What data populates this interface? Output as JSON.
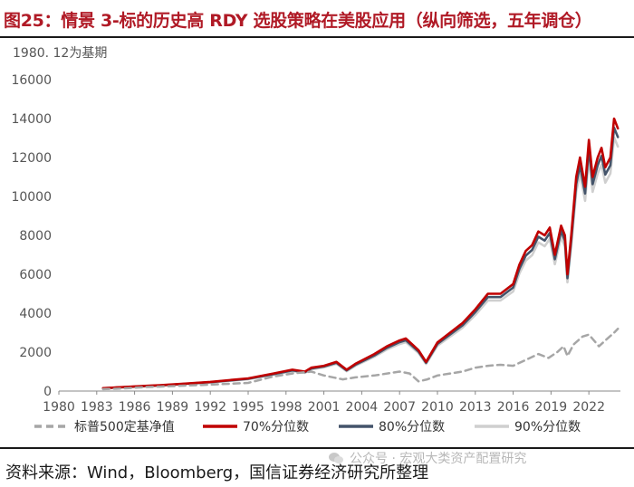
{
  "figure": {
    "title": "图25：情景 3-标的历史高 RDY 选股策略在美股应用（纵向筛选，五年调仓）",
    "base_note": "1980. 12为基期",
    "source": "资料来源：Wind，Bloomberg，国信证券经济研究所整理",
    "watermark": "公众号 · 宏观大类资产配置研究",
    "watermark_icon": "wechat-icon"
  },
  "chart_data": {
    "type": "line",
    "title": "情景 3-标的历史高 RDY 选股策略在美股应用（纵向筛选，五年调仓）",
    "xlabel": "",
    "ylabel": "1980. 12为基期",
    "xlim": [
      1980,
      2024.5
    ],
    "ylim": [
      0,
      16000
    ],
    "x_ticks": [
      "1980",
      "1983",
      "1986",
      "1989",
      "1992",
      "1995",
      "1998",
      "2001",
      "2004",
      "2007",
      "2010",
      "2013",
      "2016",
      "2019",
      "2022"
    ],
    "y_ticks": [
      "0",
      "2000",
      "4000",
      "6000",
      "8000",
      "10000",
      "12000",
      "14000",
      "16000"
    ],
    "legend_position": "bottom",
    "series": [
      {
        "name": "标普500定基净值",
        "color": "#a6a6a6",
        "dash": true,
        "x": [
          1983.5,
          1985,
          1987,
          1988,
          1990,
          1992,
          1995,
          1997,
          1998.5,
          2000,
          2001,
          2002.5,
          2003.5,
          2005,
          2007,
          2007.8,
          2008.5,
          2009.2,
          2010,
          2011,
          2012,
          2013,
          2014,
          2015,
          2016,
          2017,
          2018,
          2018.8,
          2019.5,
          2020,
          2020.3,
          2020.8,
          2021.5,
          2022,
          2022.8,
          2023.3,
          2024,
          2024.3
        ],
        "y": [
          100,
          130,
          210,
          230,
          280,
          330,
          420,
          750,
          900,
          1000,
          800,
          600,
          700,
          800,
          1000,
          900,
          500,
          600,
          800,
          900,
          1000,
          1200,
          1300,
          1350,
          1300,
          1600,
          1900,
          1700,
          2000,
          2300,
          1800,
          2400,
          2800,
          2900,
          2300,
          2600,
          3000,
          3200
        ]
      },
      {
        "name": "70%分位数",
        "color": "#c00000",
        "dash": false,
        "x": [
          1983.5,
          1985,
          1987,
          1988,
          1990,
          1992,
          1995,
          1997,
          1998.5,
          1999.5,
          2000,
          2001,
          2002,
          2002.8,
          2003.5,
          2005,
          2006,
          2007,
          2007.5,
          2008.5,
          2009.1,
          2010,
          2011,
          2012,
          2013,
          2014,
          2015,
          2016,
          2016.5,
          2017,
          2017.5,
          2018,
          2018.5,
          2018.9,
          2019.3,
          2019.8,
          2020.1,
          2020.3,
          2020.6,
          2021,
          2021.3,
          2021.7,
          2022,
          2022.3,
          2022.7,
          2023,
          2023.3,
          2023.7,
          2024,
          2024.3
        ],
        "y": [
          150,
          200,
          270,
          300,
          380,
          470,
          650,
          900,
          1100,
          1000,
          1200,
          1300,
          1500,
          1100,
          1400,
          1900,
          2300,
          2600,
          2700,
          2100,
          1500,
          2500,
          3000,
          3500,
          4200,
          5000,
          5000,
          5500,
          6500,
          7200,
          7500,
          8200,
          8000,
          8400,
          7000,
          8500,
          8000,
          6000,
          8000,
          11000,
          12000,
          10500,
          12900,
          11000,
          12000,
          12500,
          11500,
          12000,
          14000,
          13500
        ]
      },
      {
        "name": "80%分位数",
        "color": "#44546a",
        "dash": false,
        "x": [
          1983.5,
          1985,
          1987,
          1988,
          1990,
          1992,
          1995,
          1997,
          1998.5,
          1999.5,
          2000,
          2001,
          2002,
          2002.8,
          2003.5,
          2005,
          2006,
          2007,
          2007.5,
          2008.5,
          2009.1,
          2010,
          2011,
          2012,
          2013,
          2014,
          2015,
          2016,
          2016.5,
          2017,
          2017.5,
          2018,
          2018.5,
          2018.9,
          2019.3,
          2019.8,
          2020.1,
          2020.3,
          2020.6,
          2021,
          2021.3,
          2021.7,
          2022,
          2022.3,
          2022.7,
          2023,
          2023.3,
          2023.7,
          2024,
          2024.3
        ],
        "y": [
          145,
          195,
          262,
          290,
          370,
          455,
          630,
          870,
          1060,
          970,
          1160,
          1260,
          1450,
          1060,
          1350,
          1830,
          2220,
          2510,
          2610,
          2030,
          1450,
          2420,
          2900,
          3380,
          4060,
          4830,
          4830,
          5320,
          6280,
          6960,
          7250,
          7930,
          7730,
          8120,
          6770,
          8220,
          7730,
          5800,
          7730,
          10630,
          11600,
          10150,
          12470,
          10630,
          11600,
          12080,
          11120,
          11600,
          13530,
          13050
        ]
      },
      {
        "name": "90%分位数",
        "color": "#cfcfcf",
        "dash": false,
        "x": [
          1983.5,
          1985,
          1987,
          1988,
          1990,
          1992,
          1995,
          1997,
          1998.5,
          1999.5,
          2000,
          2001,
          2002,
          2002.8,
          2003.5,
          2005,
          2006,
          2007,
          2007.5,
          2008.5,
          2009.1,
          2010,
          2011,
          2012,
          2013,
          2014,
          2015,
          2016,
          2016.5,
          2017,
          2017.5,
          2018,
          2018.5,
          2018.9,
          2019.3,
          2019.8,
          2020.1,
          2020.3,
          2020.6,
          2021,
          2021.3,
          2021.7,
          2022,
          2022.3,
          2022.7,
          2023,
          2023.3,
          2023.7,
          2024,
          2024.3
        ],
        "y": [
          140,
          188,
          252,
          279,
          356,
          438,
          607,
          838,
          1020,
          934,
          1117,
          1213,
          1396,
          1020,
          1300,
          1762,
          2137,
          2416,
          2512,
          1954,
          1396,
          2330,
          2792,
          3254,
          3909,
          4650,
          4650,
          5122,
          6046,
          6701,
          6980,
          7635,
          7442,
          7818,
          6518,
          7914,
          7442,
          5584,
          7442,
          10234,
          11170,
          9772,
          12005,
          10234,
          11170,
          11630,
          10706,
          11170,
          13026,
          12564
        ]
      }
    ]
  }
}
